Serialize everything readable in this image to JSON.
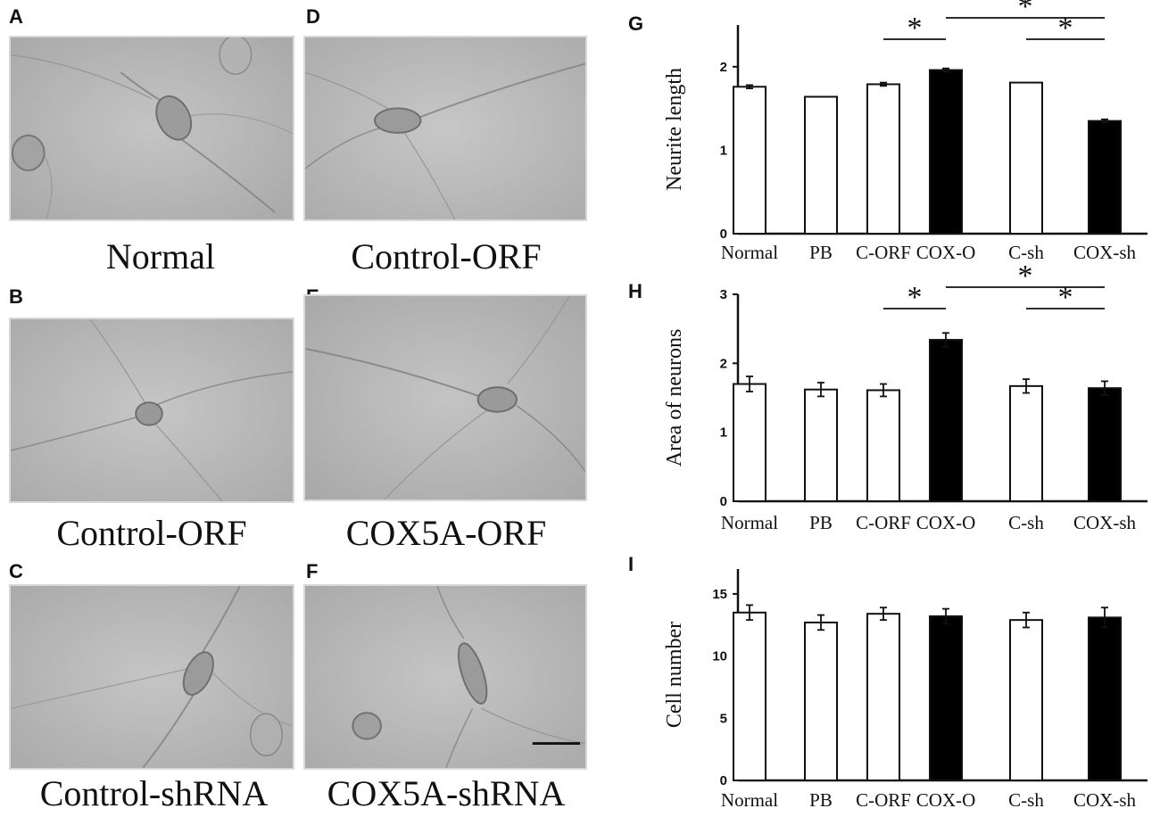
{
  "figure": {
    "micrographs": [
      {
        "letter": "A",
        "caption": "Normal"
      },
      {
        "letter": "B",
        "caption": "Control-ORF"
      },
      {
        "letter": "C",
        "caption": "Control-shRNA"
      },
      {
        "letter": "D",
        "caption": "Control-ORF"
      },
      {
        "letter": "E",
        "caption": "COX5A-ORF"
      },
      {
        "letter": "F",
        "caption": "COX5A-shRNA"
      }
    ],
    "colors": {
      "open_bar": "#ffffff",
      "filled_bar": "#000000",
      "axis": "#111111",
      "micrograph_bg": "#b9b9b9"
    }
  },
  "chart_data": [
    {
      "letter": "G",
      "type": "bar",
      "ylabel": "Neurite length",
      "categories": [
        "Normal",
        "PB",
        "C-ORF",
        "COX-O",
        "C-sh",
        "COX-sh"
      ],
      "values": [
        1.76,
        1.64,
        1.79,
        1.96,
        1.81,
        1.35
      ],
      "errors": [
        0.02,
        0.0,
        0.02,
        0.02,
        0.0,
        0.02
      ],
      "filled": [
        false,
        false,
        false,
        true,
        false,
        true
      ],
      "ylim": [
        0,
        2.5
      ],
      "yticks": [
        0,
        1,
        2
      ],
      "significance": [
        {
          "from": "C-ORF",
          "to": "COX-O",
          "label": "*"
        },
        {
          "from": "COX-O",
          "to": "COX-sh",
          "label": "*"
        },
        {
          "from": "C-sh",
          "to": "COX-sh",
          "label": "*"
        }
      ]
    },
    {
      "letter": "H",
      "type": "bar",
      "ylabel": "Area of neurons",
      "categories": [
        "Normal",
        "PB",
        "C-ORF",
        "COX-O",
        "C-sh",
        "COX-sh"
      ],
      "values": [
        1.7,
        1.62,
        1.61,
        2.34,
        1.67,
        1.64
      ],
      "errors": [
        0.11,
        0.1,
        0.09,
        0.1,
        0.1,
        0.1
      ],
      "filled": [
        false,
        false,
        false,
        true,
        false,
        true
      ],
      "ylim": [
        0,
        3
      ],
      "yticks": [
        0,
        1,
        2,
        3
      ],
      "significance": [
        {
          "from": "C-ORF",
          "to": "COX-O",
          "label": "*"
        },
        {
          "from": "COX-O",
          "to": "COX-sh",
          "label": "*"
        },
        {
          "from": "C-sh",
          "to": "COX-sh",
          "label": "*"
        }
      ]
    },
    {
      "letter": "I",
      "type": "bar",
      "ylabel": "Cell number",
      "categories": [
        "Normal",
        "PB",
        "C-ORF",
        "COX-O",
        "C-sh",
        "COX-sh"
      ],
      "values": [
        13.5,
        12.7,
        13.4,
        13.2,
        12.9,
        13.1
      ],
      "errors": [
        0.6,
        0.6,
        0.5,
        0.6,
        0.6,
        0.8
      ],
      "filled": [
        false,
        false,
        false,
        true,
        false,
        true
      ],
      "ylim": [
        0,
        17
      ],
      "yticks": [
        0,
        5,
        10,
        15
      ],
      "significance": []
    }
  ]
}
